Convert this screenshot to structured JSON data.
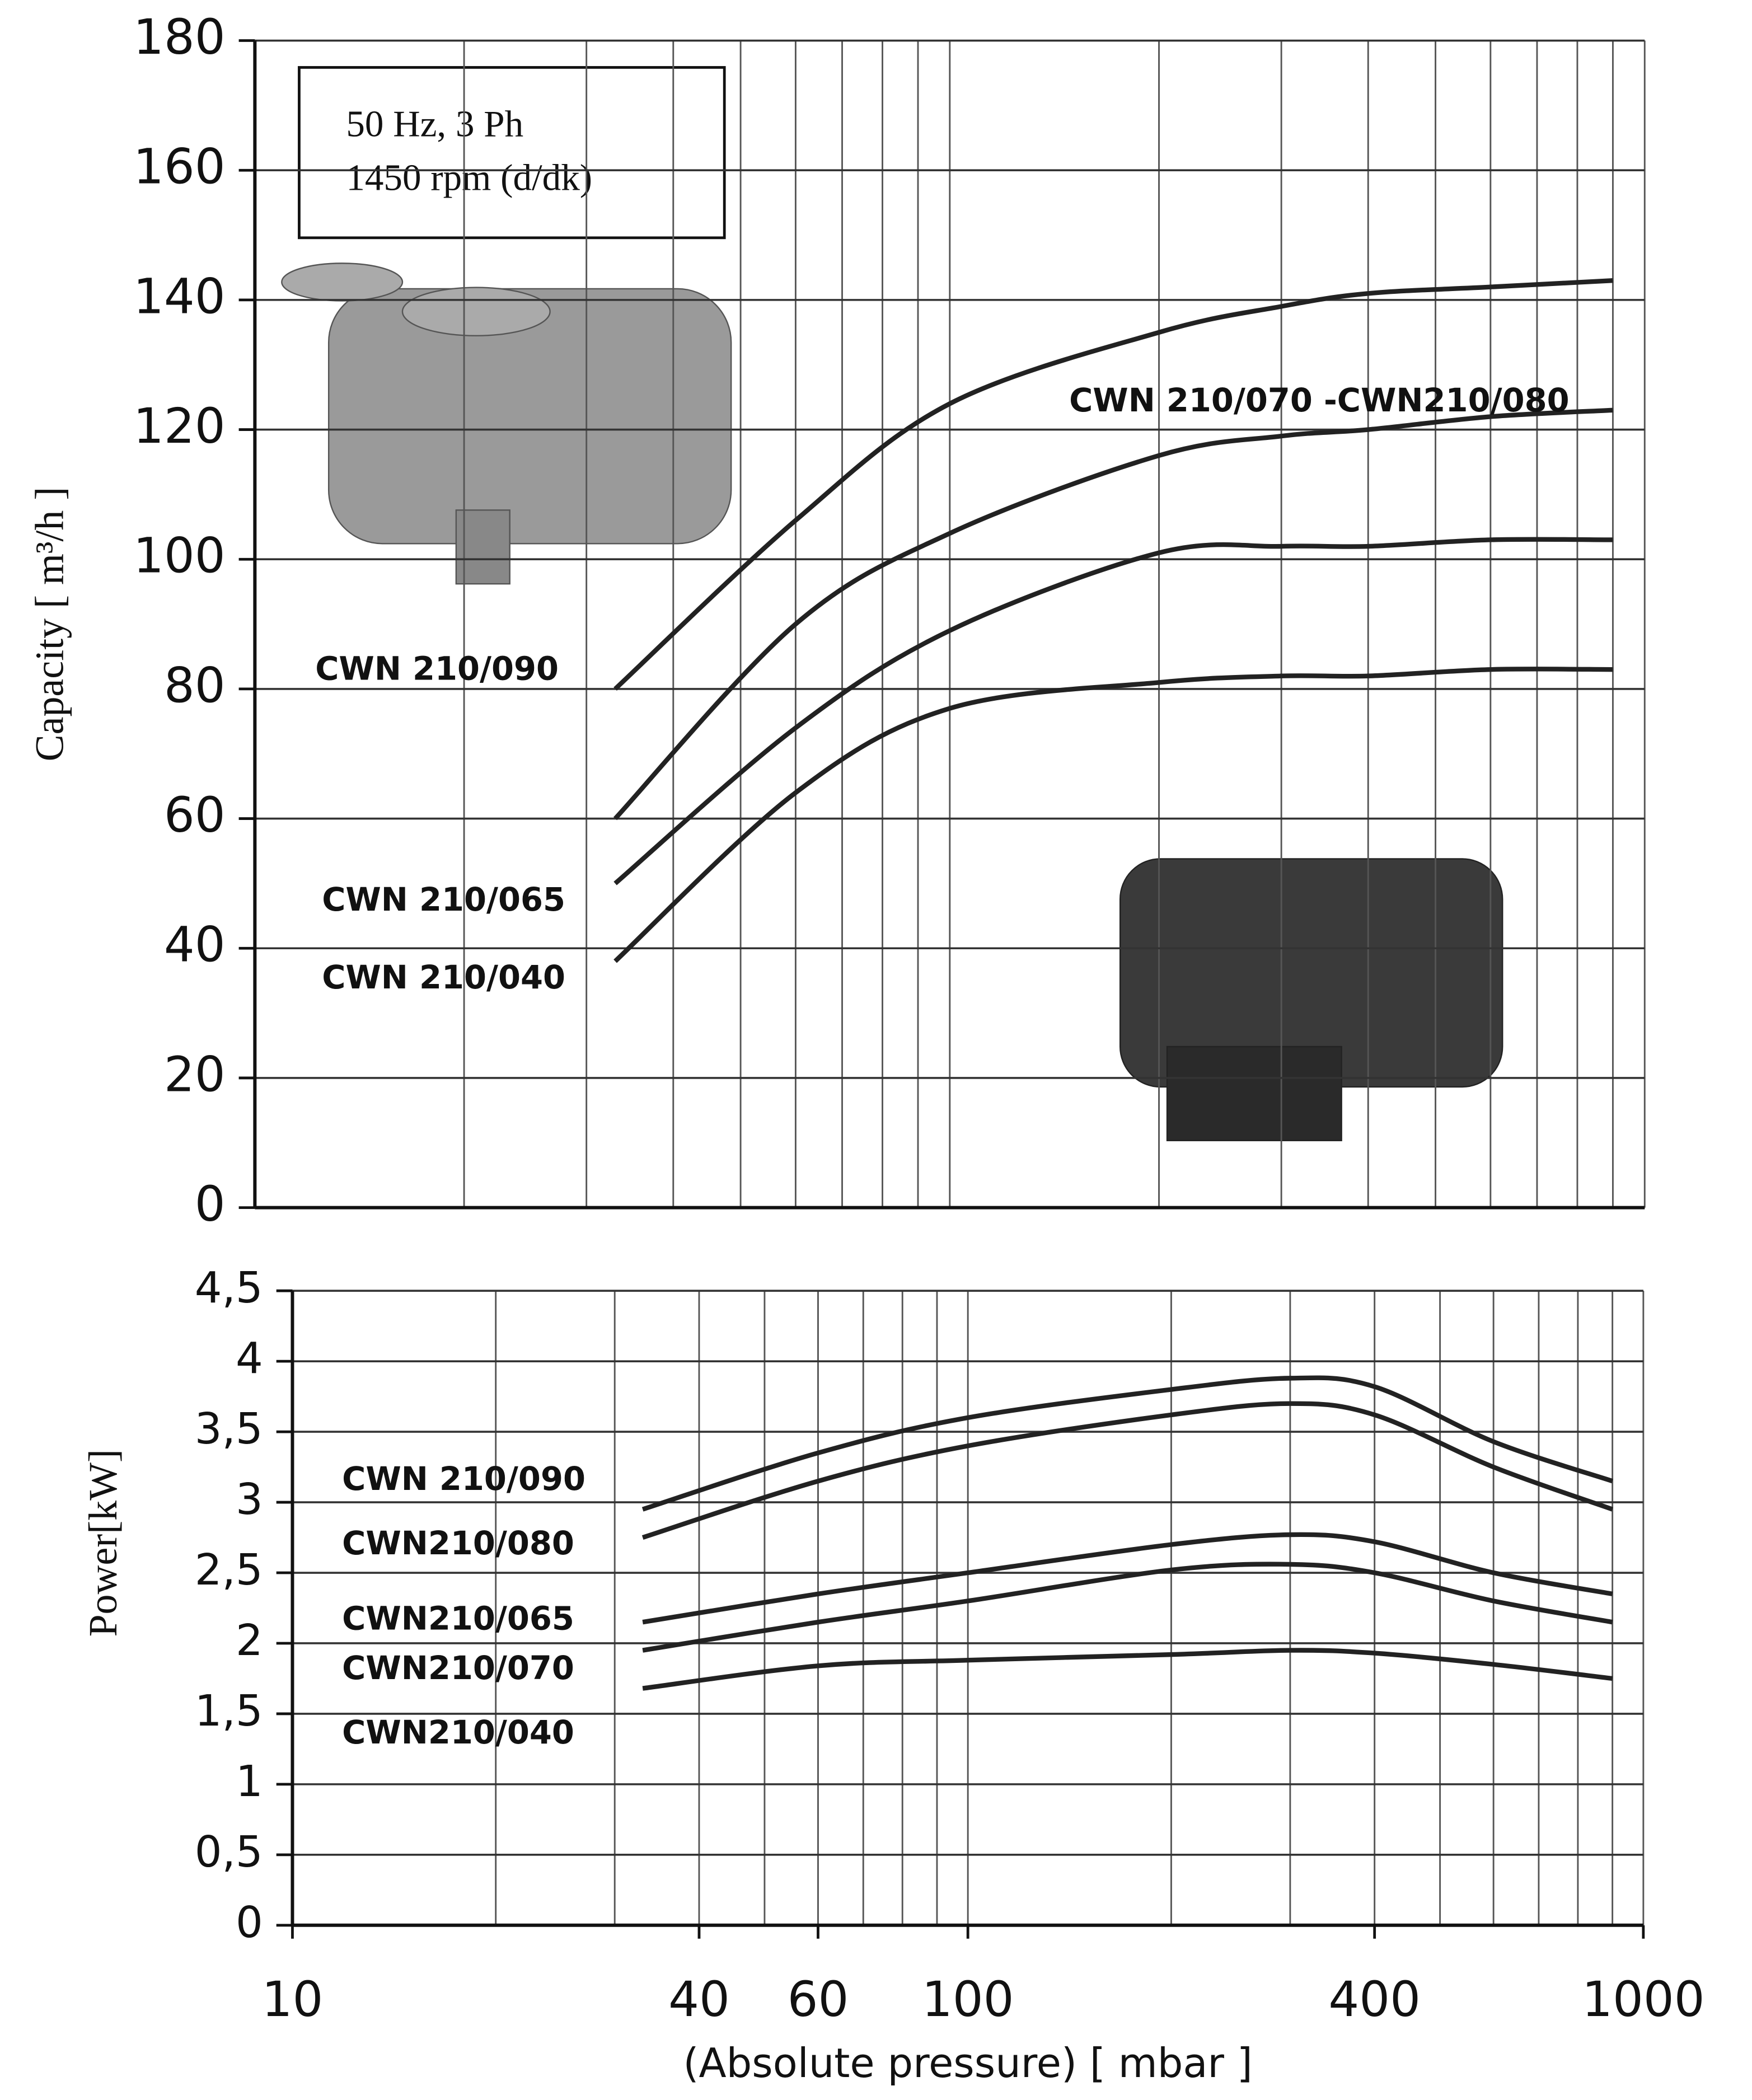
{
  "chart_data": [
    {
      "type": "line",
      "ylabel": "Capacity [ m³/h ]",
      "xlim": [
        10,
        1000
      ],
      "xscale": "log",
      "ylim": [
        0,
        180
      ],
      "yticks": [
        0,
        20,
        40,
        60,
        80,
        100,
        120,
        140,
        160,
        180
      ],
      "grid": true,
      "minor_grid": true,
      "annotation": [
        "50 Hz, 3 Ph",
        "1450 rpm (d/dk)"
      ],
      "x": [
        33,
        60,
        100,
        200,
        300,
        400,
        600,
        900
      ],
      "series": [
        {
          "name": "CWN 210/090",
          "color": "#222222",
          "values": [
            80,
            106,
            124,
            135,
            139,
            141,
            142,
            143
          ]
        },
        {
          "name": "CWN  210/070 -CWN210/080",
          "color": "#222222",
          "values": [
            60,
            90,
            104,
            116,
            119,
            120,
            122,
            123
          ]
        },
        {
          "name": "CWN 210/065",
          "color": "#222222",
          "values": [
            50,
            74,
            89,
            101,
            102,
            102,
            103,
            103
          ]
        },
        {
          "name": "CWN 210/040",
          "color": "#222222",
          "values": [
            38,
            64,
            77,
            81,
            82,
            82,
            83,
            83
          ]
        }
      ]
    },
    {
      "type": "line",
      "ylabel": "Power[kW]",
      "xlabel": "(Absolute pressure) [ mbar ]",
      "xlim": [
        10,
        1000
      ],
      "xscale": "log",
      "ylim": [
        0,
        4.5
      ],
      "xticks": [
        10,
        40,
        60,
        100,
        400,
        1000
      ],
      "yticks": [
        0,
        {
          "value": 0.5,
          "label": "0,5"
        },
        1,
        {
          "value": 1.5,
          "label": "1,5"
        },
        2,
        {
          "value": 2.5,
          "label": "2,5"
        },
        3,
        {
          "value": 3.5,
          "label": "3,5"
        },
        4,
        {
          "value": 4.5,
          "label": "4,5"
        }
      ],
      "grid": true,
      "minor_grid": true,
      "x": [
        33,
        60,
        100,
        200,
        300,
        400,
        600,
        900
      ],
      "series": [
        {
          "name": "CWN 210/090",
          "color": "#222222",
          "values": [
            2.95,
            3.35,
            3.6,
            3.8,
            3.88,
            3.82,
            3.43,
            3.15
          ]
        },
        {
          "name": "CWN210/080",
          "color": "#222222",
          "values": [
            2.75,
            3.15,
            3.4,
            3.62,
            3.7,
            3.62,
            3.25,
            2.95
          ]
        },
        {
          "name": "CWN210/065",
          "color": "#222222",
          "values": [
            2.15,
            2.35,
            2.5,
            2.7,
            2.77,
            2.72,
            2.5,
            2.35
          ]
        },
        {
          "name": "CWN210/070",
          "color": "#222222",
          "values": [
            1.95,
            2.15,
            2.3,
            2.52,
            2.56,
            2.5,
            2.3,
            2.15
          ]
        },
        {
          "name": "CWN210/040",
          "color": "#222222",
          "values": [
            1.68,
            1.84,
            1.88,
            1.92,
            1.95,
            1.93,
            1.85,
            1.75
          ]
        }
      ]
    }
  ]
}
